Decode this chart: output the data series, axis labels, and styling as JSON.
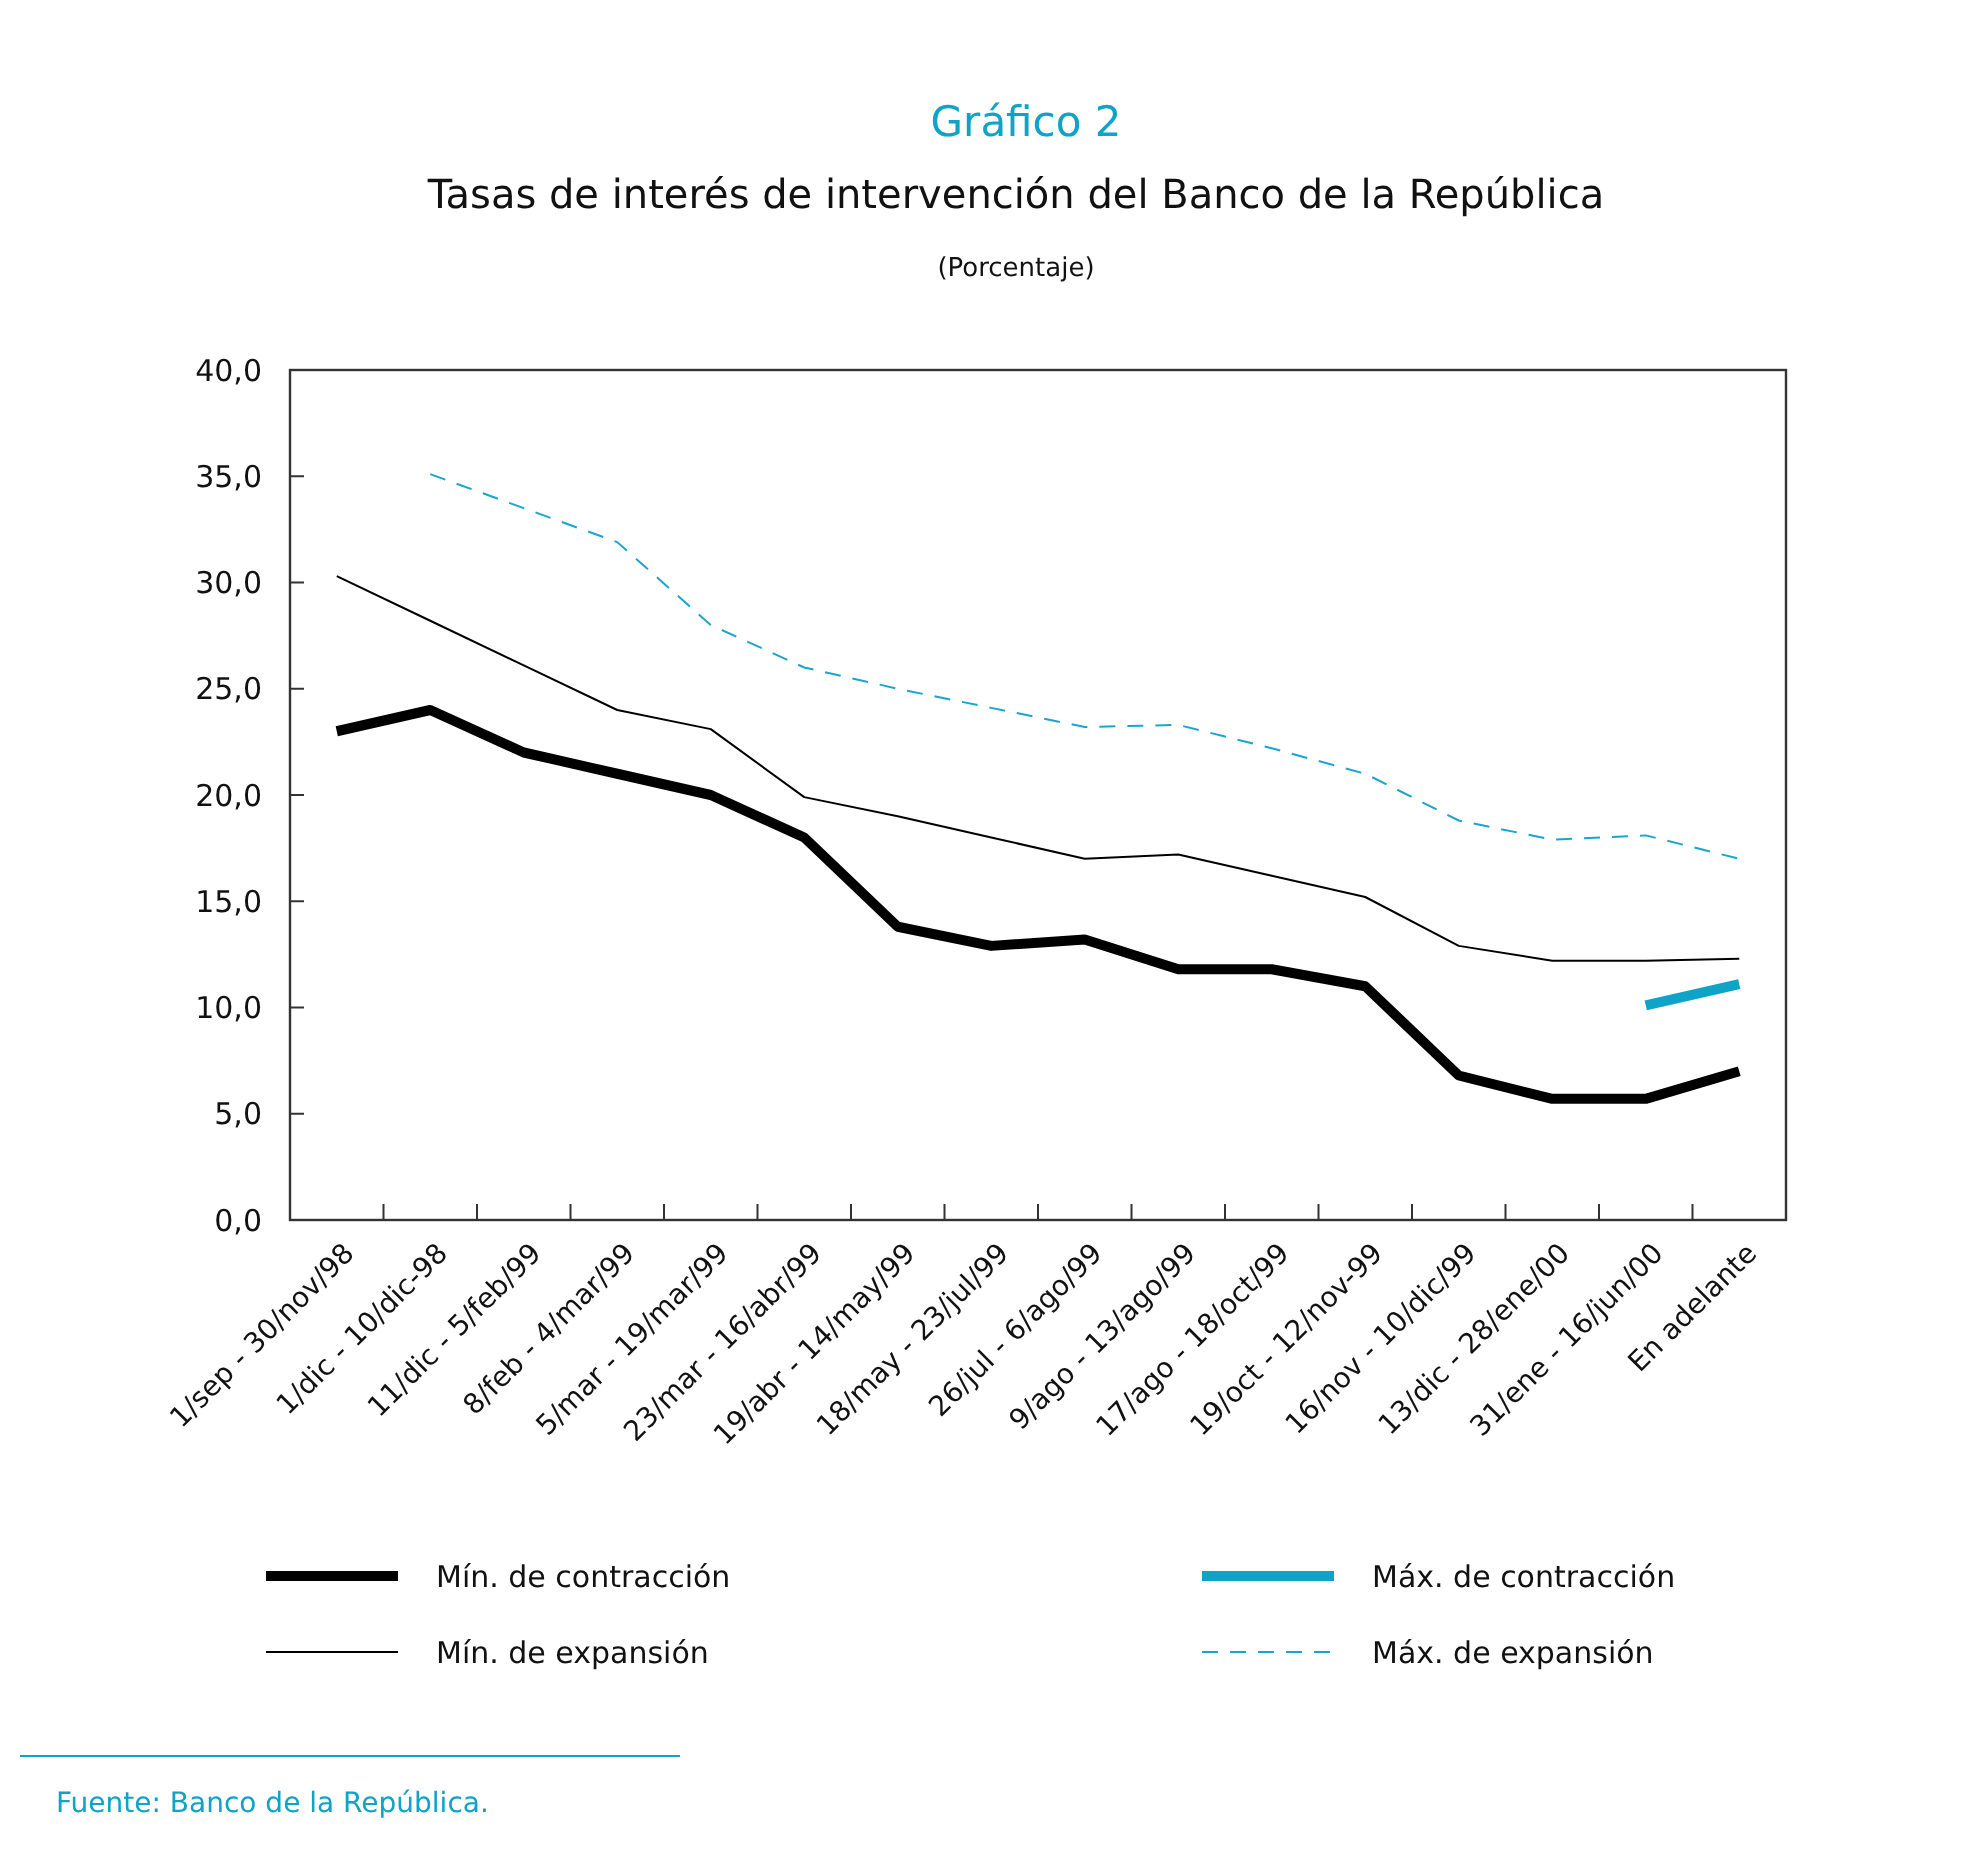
{
  "chart_data": {
    "type": "line",
    "title": "Gráfico 2",
    "subtitle": "Tasas de interés de intervención del Banco de la República",
    "ylabel": "(Porcentaje)",
    "categories": [
      "1/sep - 30/nov/98",
      "1/dic - 10/dic-98",
      "11/dic - 5/feb/99",
      "8/feb - 4/mar/99",
      "5/mar - 19/mar/99",
      "23/mar - 16/abr/99",
      "19/abr - 14/may/99",
      "18/may - 23/jul/99",
      "26/jul - 6/ago/99",
      "9/ago - 13/ago/99",
      "17/ago - 18/oct/99",
      "19/oct - 12/nov-99",
      "16/nov - 10/dic/99",
      "13/dic - 28/ene/00",
      "31/ene - 16/jun/00",
      "En adelante"
    ],
    "series": [
      {
        "name": "Mín. de contracción",
        "color": "#000000",
        "line_style": "solid",
        "values": [
          23.0,
          24.0,
          22.0,
          21.0,
          20.0,
          18.0,
          13.8,
          12.9,
          13.2,
          11.8,
          11.8,
          11.0,
          6.8,
          5.7,
          5.7,
          7.0
        ]
      },
      {
        "name": "Máx. de contracción",
        "color": "#0fa3c8",
        "line_style": "solid",
        "values": [
          null,
          null,
          null,
          null,
          null,
          null,
          null,
          null,
          null,
          null,
          null,
          null,
          null,
          null,
          10.1,
          11.1
        ]
      },
      {
        "name": "Mín. de expansión",
        "color": "#000000",
        "line_style": "solid",
        "values": [
          30.3,
          28.2,
          26.1,
          24.0,
          23.1,
          19.9,
          19.0,
          18.0,
          17.0,
          17.2,
          16.2,
          15.2,
          12.9,
          12.2,
          12.2,
          12.3
        ]
      },
      {
        "name": "Máx. de expansión",
        "color": "#19a5cf",
        "line_style": "dashed",
        "values": [
          null,
          35.1,
          33.5,
          31.9,
          28.0,
          26.0,
          25.0,
          24.1,
          23.2,
          23.3,
          22.2,
          21.0,
          18.8,
          17.9,
          18.1,
          17.0
        ]
      }
    ],
    "ylim": [
      0,
      40
    ],
    "yticks": [
      {
        "value": 0,
        "label": "0,0"
      },
      {
        "value": 5,
        "label": "5,0"
      },
      {
        "value": 10,
        "label": "10,0"
      },
      {
        "value": 15,
        "label": "15,0"
      },
      {
        "value": 20,
        "label": "20,0"
      },
      {
        "value": 25,
        "label": "25,0"
      },
      {
        "value": 30,
        "label": "30,0"
      },
      {
        "value": 35,
        "label": "35,0"
      },
      {
        "value": 40,
        "label": "40,0"
      }
    ],
    "grid": false,
    "legend": "bottom",
    "annotations": [
      "Fuente: Banco de la República."
    ]
  }
}
